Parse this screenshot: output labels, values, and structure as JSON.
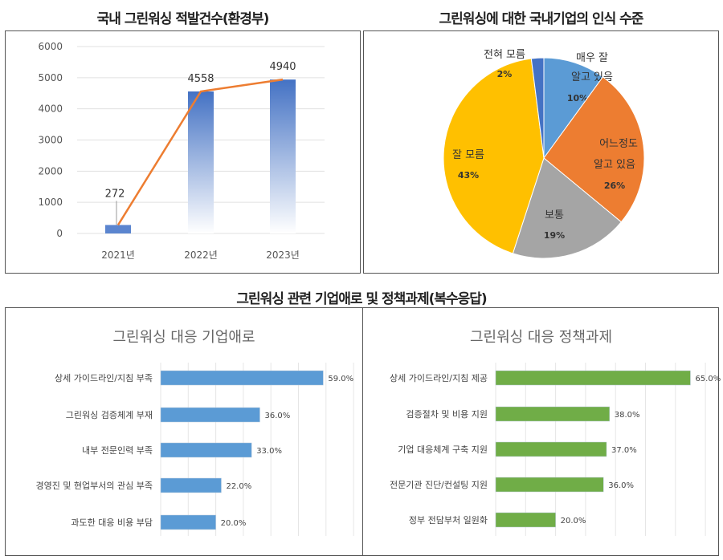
{
  "chart_data": [
    {
      "type": "bar+line",
      "title": "국내 그린워싱 적발건수(환경부)",
      "categories": [
        "2021년",
        "2022년",
        "2023년"
      ],
      "values": [
        272,
        4558,
        4940
      ],
      "ylim": [
        0,
        6000
      ],
      "yticks": [
        0,
        1000,
        2000,
        3000,
        4000,
        5000,
        6000
      ],
      "grid": true,
      "colors": {
        "bar": "#4472c4",
        "line": "#ed7d31"
      }
    },
    {
      "type": "pie",
      "title": "그린워싱에 대한 국내기업의 인식 수준",
      "slices": [
        {
          "label": "매우 잘 알고 있음",
          "value": 10,
          "pct": "10%",
          "color": "#5b9bd5"
        },
        {
          "label": "어느정도 알고 있음",
          "value": 26,
          "pct": "26%",
          "color": "#ed7d31"
        },
        {
          "label": "보통",
          "value": 19,
          "pct": "19%",
          "color": "#a5a5a5"
        },
        {
          "label": "잘 모름",
          "value": 43,
          "pct": "43%",
          "color": "#ffc000"
        },
        {
          "label": "전혀 모름",
          "value": 2,
          "pct": "2%",
          "color": "#4472c4"
        }
      ]
    },
    {
      "type": "bar",
      "orientation": "horizontal",
      "title": "그린워싱 대응 기업애로",
      "categories": [
        "상세 가이드라인/지침 부족",
        "그린워싱 검증체계 부재",
        "내부 전문인력 부족",
        "경영진 및 현업부서의 관심 부족",
        "과도한 대응 비용 부담"
      ],
      "values": [
        59,
        36,
        33,
        22,
        20
      ],
      "labels": [
        "59.0%",
        "36.0%",
        "33.0%",
        "22.0%",
        "20.0%"
      ],
      "xlim": [
        0,
        70
      ],
      "grid": true,
      "color": "#5b9bd5"
    },
    {
      "type": "bar",
      "orientation": "horizontal",
      "title": "그린워싱 대응 정책과제",
      "categories": [
        "상세 가이드라인/지침 제공",
        "검증절차 및 비용 지원",
        "기업 대응체계 구축 지원",
        "전문기관 진단/컨설팅 지원",
        "정부 전담부처 일원화"
      ],
      "values": [
        65,
        38,
        37,
        36,
        20
      ],
      "labels": [
        "65.0%",
        "38.0%",
        "37.0%",
        "36.0%",
        "20.0%"
      ],
      "xlim": [
        0,
        70
      ],
      "grid": true,
      "color": "#70ad47"
    }
  ],
  "section_title": "그린워싱 관련 기업애로 및 정책과제(복수응답)"
}
